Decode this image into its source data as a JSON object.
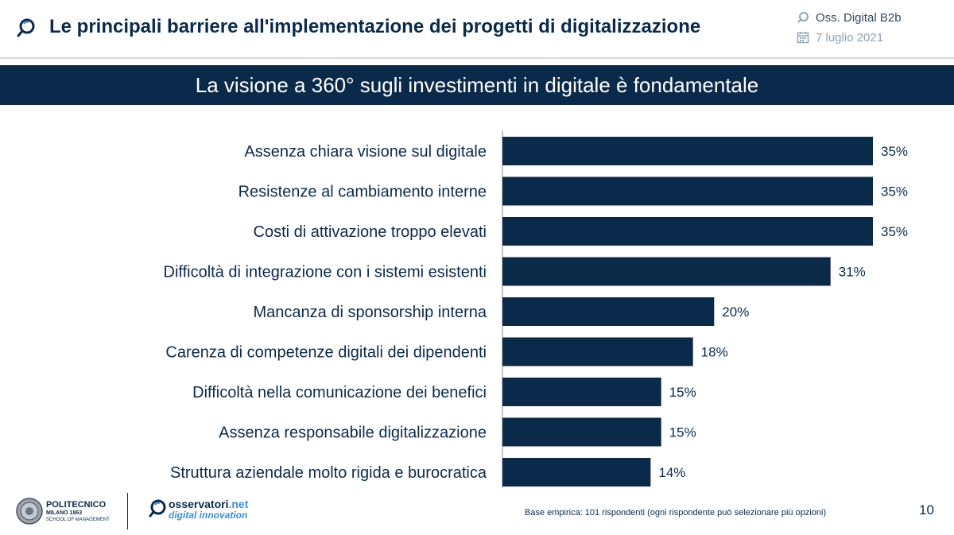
{
  "header": {
    "title": "Le principali barriere all'implementazione dei progetti di digitalizzazione",
    "source": "Oss. Digital B2b",
    "date": "7 luglio 2021"
  },
  "banner": {
    "text": "La visione a 360° sugli investimenti in digitale è fondamentale"
  },
  "chart_data": {
    "type": "bar",
    "orientation": "horizontal",
    "title": "La visione a 360° sugli investimenti in digitale è fondamentale",
    "categories": [
      "Assenza chiara visione sul digitale",
      "Resistenze al cambiamento interne",
      "Costi di attivazione troppo elevati",
      "Difficoltà di integrazione con i sistemi esistenti",
      "Mancanza di sponsorship interna",
      "Carenza di competenze digitali dei dipendenti",
      "Difficoltà nella comunicazione dei benefici",
      "Assenza responsabile digitalizzazione",
      "Struttura aziendale molto rigida e burocratica"
    ],
    "values": [
      35,
      35,
      35,
      31,
      20,
      18,
      15,
      15,
      14
    ],
    "value_labels": [
      "35%",
      "35%",
      "35%",
      "31%",
      "20%",
      "18%",
      "15%",
      "15%",
      "14%"
    ],
    "unit": "%",
    "xlim": [
      0,
      35
    ],
    "bar_color": "#0b2a4a",
    "label_color": "#0b2a4a",
    "grid": false,
    "xlabel": "",
    "ylabel": ""
  },
  "footer": {
    "poli_name": "POLITECNICO",
    "poli_sub1": "MILANO 1863",
    "poli_sub2": "SCHOOL OF MANAGEMENT",
    "osserv_name_main": "osservatori",
    "osserv_name_accent": ".net",
    "osserv_sub": "digital innovation",
    "base_note": "Base empirica: 101 rispondenti (ogni rispondente può selezionare più opzioni)",
    "page_number": "10"
  },
  "colors": {
    "brand_navy": "#0b2a4a",
    "accent_blue": "#3a8fd6"
  }
}
